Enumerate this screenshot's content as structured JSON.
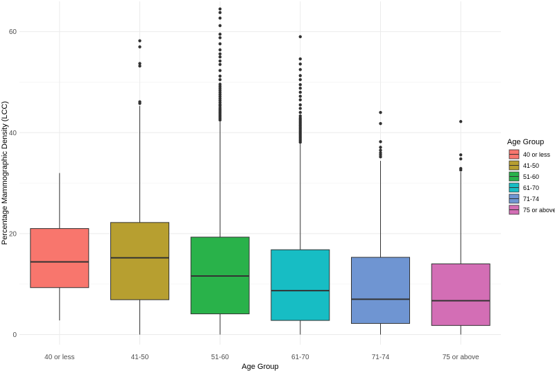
{
  "chart_data": {
    "type": "boxplot",
    "title": "",
    "xlabel": "Age Group",
    "ylabel": "Percentage Mammographic Density (LCC)",
    "ylim": [
      -2,
      66
    ],
    "yticks": [
      0,
      20,
      40,
      60
    ],
    "grid": true,
    "legend": {
      "title": "Age Group",
      "position": "right"
    },
    "groups": [
      {
        "name": "40 or less",
        "color": "#F8766D",
        "whisker_low": 2.8,
        "q1": 9.3,
        "median": 14.4,
        "q3": 21.0,
        "whisker_high": 32.0,
        "outliers": []
      },
      {
        "name": "41-50",
        "color": "#B79F30",
        "whisker_low": 0.0,
        "q1": 6.9,
        "median": 15.2,
        "q3": 22.2,
        "whisker_high": 45.3,
        "outliers": [
          45.8,
          46.1,
          53.2,
          53.7,
          57.0,
          58.2
        ]
      },
      {
        "name": "51-60",
        "color": "#29B24A",
        "whisker_low": 0.0,
        "q1": 4.1,
        "median": 11.6,
        "q3": 19.3,
        "whisker_high": 42.2,
        "outliers": [
          42.5,
          42.8,
          43.1,
          43.4,
          43.7,
          44.0,
          44.3,
          44.6,
          44.9,
          45.3,
          45.6,
          46.0,
          46.4,
          46.8,
          47.2,
          47.6,
          48.0,
          48.4,
          48.8,
          49.2,
          49.6,
          50.5,
          51.2,
          52.3,
          53.5,
          54.2,
          55.0,
          55.6,
          56.4,
          57.6,
          58.8,
          59.5,
          61.2,
          62.7,
          63.8,
          64.5
        ]
      },
      {
        "name": "61-70",
        "color": "#17BDC4",
        "whisker_low": 0.0,
        "q1": 2.8,
        "median": 8.7,
        "q3": 16.8,
        "whisker_high": 37.8,
        "outliers": [
          38.1,
          38.4,
          38.7,
          39.0,
          39.3,
          39.6,
          39.9,
          40.2,
          40.5,
          40.8,
          41.1,
          41.4,
          41.7,
          42.0,
          42.3,
          42.6,
          42.9,
          43.3,
          44.0,
          44.8,
          45.5,
          46.5,
          47.2,
          48.0,
          48.8,
          49.5,
          50.5,
          51.3,
          52.5,
          53.6,
          54.6,
          59.0
        ]
      },
      {
        "name": "71-74",
        "color": "#6F95D2",
        "whisker_low": 0.0,
        "q1": 2.2,
        "median": 7.0,
        "q3": 15.3,
        "whisker_high": 34.4,
        "outliers": [
          35.2,
          35.6,
          36.0,
          36.5,
          37.1,
          38.2,
          41.8,
          44.0
        ]
      },
      {
        "name": "75 or above",
        "color": "#D36EB5",
        "whisker_low": 0.0,
        "q1": 1.8,
        "median": 6.7,
        "q3": 14.0,
        "whisker_high": 32.2,
        "outliers": [
          32.6,
          32.9,
          34.8,
          35.6,
          42.2
        ]
      }
    ]
  }
}
